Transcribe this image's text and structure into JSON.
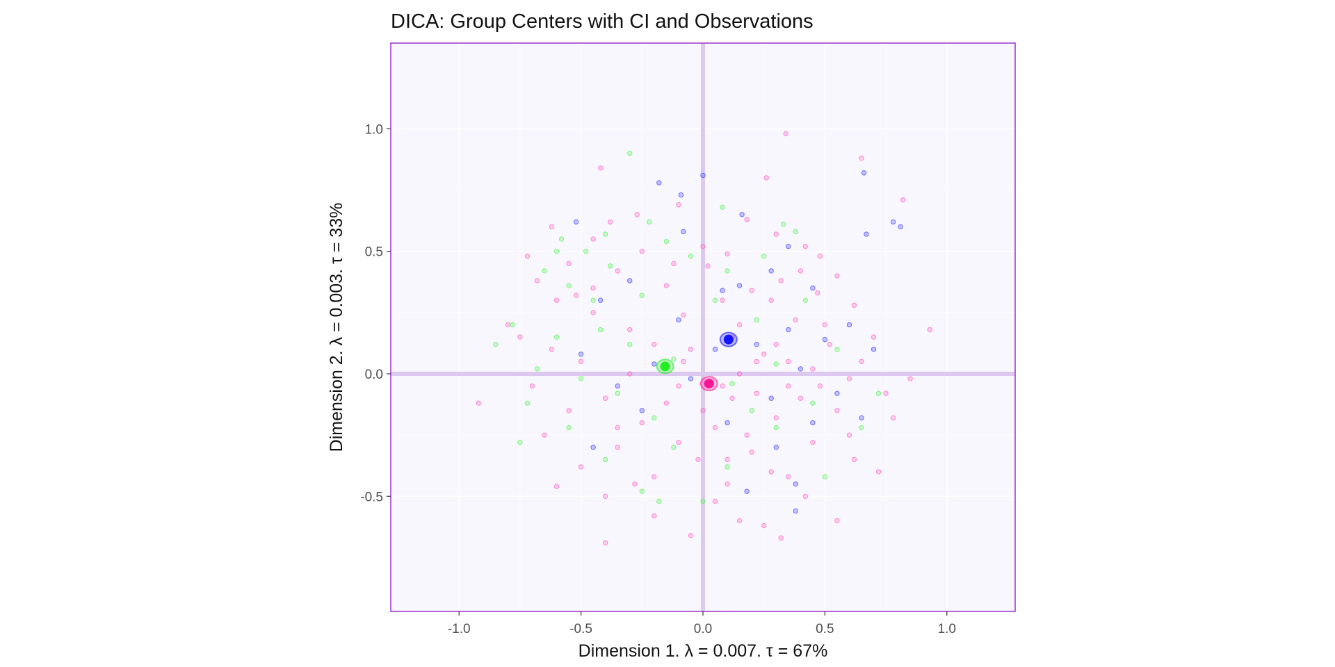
{
  "chart_data": {
    "type": "scatter",
    "title": "DICA: Group Centers with CI and Observations",
    "xlabel": "Dimension 1.   λ = 0.007.  τ = 67%",
    "ylabel": "Dimension 2.   λ = 0.003.  τ = 33%",
    "xlim": [
      -1.28,
      1.28
    ],
    "ylim": [
      -0.97,
      1.35
    ],
    "x_ticks": [
      -1.0,
      -0.5,
      0.0,
      0.5,
      1.0
    ],
    "x_tick_labels": [
      "-1.0",
      "-0.5",
      "0.0",
      "0.5",
      "1.0"
    ],
    "y_ticks": [
      -0.5,
      0.0,
      0.5,
      1.0
    ],
    "y_tick_labels": [
      "-0.5",
      "0.0",
      "0.5",
      "1.0"
    ],
    "grid": true,
    "colors": {
      "panel_background": "#f8f7fd",
      "panel_border": "#9b30d0",
      "origin_lines": "#ddc9f0",
      "grid": "#ffffff"
    },
    "group_centers": [
      {
        "color": "#1414ff",
        "x": 0.105,
        "y": 0.14
      },
      {
        "color": "#22ee22",
        "x": -0.155,
        "y": 0.03
      },
      {
        "color": "#ff1493",
        "x": 0.025,
        "y": -0.04
      }
    ],
    "series": [
      {
        "color": "#ff69c8",
        "points": [
          [
            0.34,
            0.98
          ],
          [
            -0.42,
            0.84
          ],
          [
            0.26,
            0.8
          ],
          [
            0.65,
            0.88
          ],
          [
            0.82,
            0.71
          ],
          [
            -0.1,
            0.69
          ],
          [
            -0.27,
            0.65
          ],
          [
            -0.62,
            0.6
          ],
          [
            -0.38,
            0.62
          ],
          [
            0.18,
            0.63
          ],
          [
            -0.72,
            0.48
          ],
          [
            0.3,
            0.57
          ],
          [
            -0.45,
            0.55
          ],
          [
            0.0,
            0.52
          ],
          [
            -0.55,
            0.45
          ],
          [
            0.48,
            0.48
          ],
          [
            -0.25,
            0.5
          ],
          [
            0.42,
            0.52
          ],
          [
            0.1,
            0.49
          ],
          [
            -0.68,
            0.38
          ],
          [
            -0.52,
            0.32
          ],
          [
            0.55,
            0.4
          ],
          [
            0.32,
            0.38
          ],
          [
            -0.35,
            0.42
          ],
          [
            0.02,
            0.44
          ],
          [
            0.2,
            0.34
          ],
          [
            -0.8,
            0.2
          ],
          [
            0.93,
            0.18
          ],
          [
            -0.6,
            0.3
          ],
          [
            0.62,
            0.28
          ],
          [
            0.47,
            0.33
          ],
          [
            -0.15,
            0.36
          ],
          [
            0.28,
            0.3
          ],
          [
            -0.45,
            0.25
          ],
          [
            0.08,
            0.3
          ],
          [
            0.38,
            0.22
          ],
          [
            -0.62,
            0.1
          ],
          [
            0.7,
            0.15
          ],
          [
            0.52,
            0.12
          ],
          [
            -0.3,
            0.18
          ],
          [
            0.15,
            0.2
          ],
          [
            -0.08,
            0.24
          ],
          [
            0.25,
            0.08
          ],
          [
            -0.5,
            0.05
          ],
          [
            0.45,
            0.02
          ],
          [
            -0.2,
            0.12
          ],
          [
            0.6,
            -0.02
          ],
          [
            -0.7,
            -0.05
          ],
          [
            -0.92,
            -0.12
          ],
          [
            0.75,
            -0.08
          ],
          [
            0.35,
            -0.05
          ],
          [
            -0.4,
            -0.1
          ],
          [
            0.12,
            -0.1
          ],
          [
            -0.1,
            -0.05
          ],
          [
            0.55,
            -0.15
          ],
          [
            -0.55,
            -0.15
          ],
          [
            0.3,
            -0.18
          ],
          [
            -0.25,
            -0.2
          ],
          [
            0.05,
            -0.22
          ],
          [
            0.78,
            -0.18
          ],
          [
            -0.65,
            -0.25
          ],
          [
            0.45,
            -0.28
          ],
          [
            -0.35,
            -0.3
          ],
          [
            0.2,
            -0.32
          ],
          [
            -0.1,
            -0.28
          ],
          [
            0.62,
            -0.35
          ],
          [
            -0.5,
            -0.38
          ],
          [
            0.72,
            -0.4
          ],
          [
            0.35,
            -0.42
          ],
          [
            -0.2,
            -0.42
          ],
          [
            0.1,
            -0.45
          ],
          [
            -0.6,
            -0.46
          ],
          [
            0.42,
            -0.5
          ],
          [
            -0.4,
            -0.5
          ],
          [
            0.05,
            -0.52
          ],
          [
            0.55,
            -0.6
          ],
          [
            -0.2,
            -0.58
          ],
          [
            0.25,
            -0.62
          ],
          [
            0.15,
            -0.6
          ],
          [
            -0.05,
            -0.66
          ],
          [
            0.32,
            -0.67
          ],
          [
            -0.4,
            -0.69
          ],
          [
            0.12,
            0.15
          ],
          [
            -0.05,
            0.1
          ],
          [
            0.22,
            0.05
          ],
          [
            0.08,
            -0.05
          ],
          [
            -0.15,
            -0.12
          ],
          [
            0.3,
            0.12
          ],
          [
            0.4,
            -0.1
          ],
          [
            -0.3,
            0.0
          ],
          [
            0.18,
            -0.25
          ],
          [
            -0.02,
            -0.35
          ],
          [
            0.5,
            0.2
          ],
          [
            -0.45,
            0.35
          ],
          [
            0.65,
            0.05
          ],
          [
            0.28,
            -0.4
          ],
          [
            -0.28,
            -0.45
          ],
          [
            0.85,
            -0.02
          ],
          [
            -0.75,
            0.15
          ],
          [
            0.4,
            0.42
          ],
          [
            -0.12,
            0.45
          ],
          [
            0.6,
            -0.25
          ],
          [
            0.0,
            -0.15
          ],
          [
            0.15,
            0.0
          ],
          [
            0.35,
            0.05
          ],
          [
            -0.08,
            0.05
          ],
          [
            0.22,
            -0.08
          ],
          [
            0.48,
            -0.05
          ],
          [
            -0.35,
            -0.22
          ],
          [
            0.1,
            -0.35
          ]
        ]
      },
      {
        "color": "#4a4aff",
        "points": [
          [
            -0.18,
            0.78
          ],
          [
            0.0,
            0.81
          ],
          [
            -0.09,
            0.73
          ],
          [
            0.66,
            0.82
          ],
          [
            0.78,
            0.62
          ],
          [
            0.81,
            0.6
          ],
          [
            0.16,
            0.65
          ],
          [
            -0.52,
            0.62
          ],
          [
            -0.08,
            0.58
          ],
          [
            0.67,
            0.57
          ],
          [
            0.35,
            0.52
          ],
          [
            0.28,
            0.42
          ],
          [
            -0.3,
            0.38
          ],
          [
            0.45,
            0.35
          ],
          [
            0.08,
            0.34
          ],
          [
            0.15,
            0.36
          ],
          [
            -0.42,
            0.3
          ],
          [
            0.6,
            0.2
          ],
          [
            -0.1,
            0.22
          ],
          [
            0.35,
            0.18
          ],
          [
            0.5,
            0.14
          ],
          [
            0.7,
            0.1
          ],
          [
            -0.5,
            0.08
          ],
          [
            0.22,
            0.12
          ],
          [
            -0.2,
            0.04
          ],
          [
            0.05,
            0.1
          ],
          [
            0.4,
            0.02
          ],
          [
            -0.05,
            -0.02
          ],
          [
            0.28,
            -0.1
          ],
          [
            -0.35,
            -0.05
          ],
          [
            0.55,
            -0.08
          ],
          [
            0.1,
            -0.2
          ],
          [
            -0.25,
            -0.15
          ],
          [
            0.45,
            -0.2
          ],
          [
            0.3,
            -0.3
          ],
          [
            -0.45,
            -0.3
          ],
          [
            0.65,
            -0.18
          ],
          [
            0.38,
            -0.45
          ],
          [
            0.18,
            -0.48
          ],
          [
            0.38,
            -0.56
          ]
        ]
      },
      {
        "color": "#5cf55c",
        "points": [
          [
            -0.3,
            0.9
          ],
          [
            0.08,
            0.68
          ],
          [
            -0.22,
            0.62
          ],
          [
            0.33,
            0.61
          ],
          [
            -0.4,
            0.57
          ],
          [
            -0.58,
            0.55
          ],
          [
            -0.15,
            0.54
          ],
          [
            0.38,
            0.58
          ],
          [
            -0.48,
            0.5
          ],
          [
            -0.05,
            0.48
          ],
          [
            -0.65,
            0.42
          ],
          [
            0.25,
            0.48
          ],
          [
            -0.38,
            0.44
          ],
          [
            0.1,
            0.42
          ],
          [
            -0.55,
            0.36
          ],
          [
            0.42,
            0.3
          ],
          [
            -0.78,
            0.2
          ],
          [
            -0.25,
            0.32
          ],
          [
            0.05,
            0.3
          ],
          [
            -0.6,
            0.15
          ],
          [
            -0.42,
            0.18
          ],
          [
            0.22,
            0.22
          ],
          [
            -0.85,
            0.12
          ],
          [
            -0.3,
            0.12
          ],
          [
            0.55,
            0.1
          ],
          [
            -0.68,
            0.02
          ],
          [
            -0.12,
            0.06
          ],
          [
            0.3,
            0.04
          ],
          [
            -0.5,
            -0.02
          ],
          [
            0.12,
            -0.04
          ],
          [
            -0.72,
            -0.12
          ],
          [
            -0.35,
            -0.08
          ],
          [
            0.45,
            -0.12
          ],
          [
            -0.2,
            -0.18
          ],
          [
            0.2,
            -0.15
          ],
          [
            -0.55,
            -0.22
          ],
          [
            0.65,
            -0.22
          ],
          [
            -0.75,
            -0.28
          ],
          [
            -0.4,
            -0.35
          ],
          [
            0.1,
            -0.38
          ],
          [
            -0.25,
            -0.48
          ],
          [
            0.72,
            -0.08
          ],
          [
            -0.18,
            -0.52
          ],
          [
            0.0,
            -0.52
          ],
          [
            -0.12,
            -0.3
          ],
          [
            0.3,
            -0.22
          ],
          [
            -0.45,
            0.3
          ],
          [
            0.5,
            -0.42
          ],
          [
            -0.6,
            0.5
          ]
        ]
      }
    ]
  }
}
